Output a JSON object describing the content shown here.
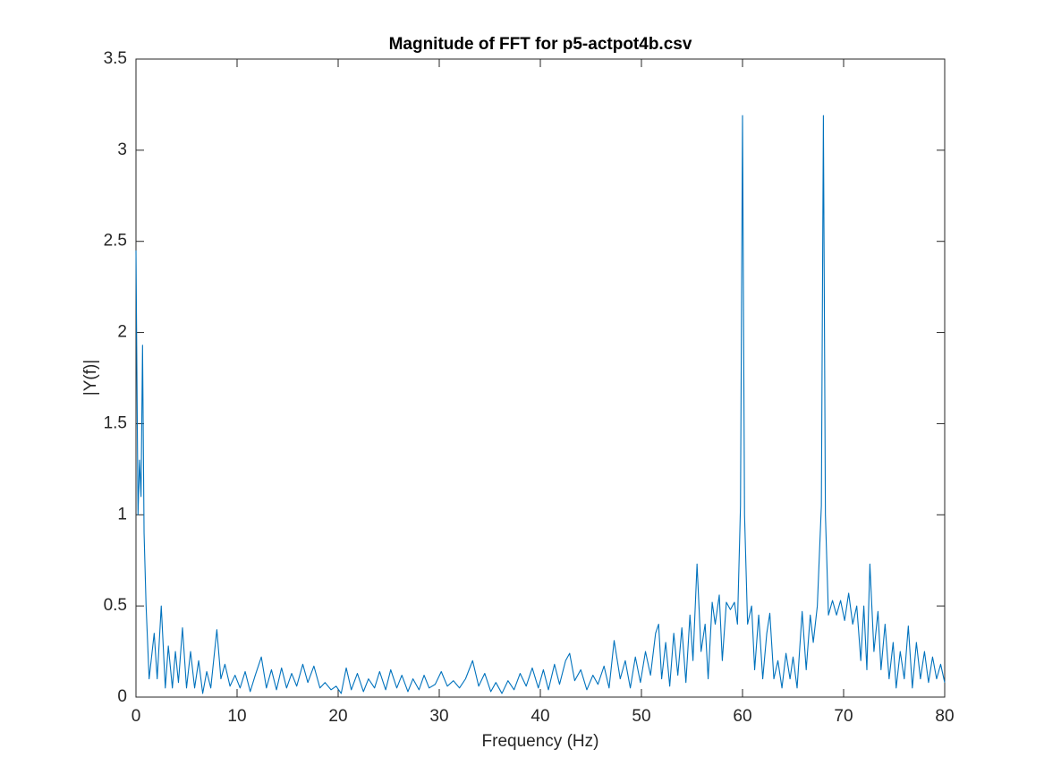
{
  "chart_data": {
    "type": "line",
    "title": "Magnitude of FFT for p5-actpot4b.csv",
    "x_label": "Frequency (Hz)",
    "y_label": "|Y(f)|",
    "color": "#0072bd",
    "grid": false,
    "xlim": [
      0,
      80
    ],
    "xticks": [
      0,
      10,
      20,
      30,
      40,
      50,
      60,
      70,
      80
    ],
    "ylim": [
      0,
      3.5
    ],
    "yticks": [
      0,
      0.5,
      1,
      1.5,
      2,
      2.5,
      3,
      3.5
    ],
    "x": [
      0,
      0.2,
      0.35,
      0.5,
      0.65,
      0.8,
      1.0,
      1.3,
      1.5,
      1.8,
      2.1,
      2.5,
      2.9,
      3.2,
      3.6,
      3.9,
      4.2,
      4.6,
      5.0,
      5.4,
      5.8,
      6.2,
      6.6,
      7.0,
      7.4,
      8.0,
      8.4,
      8.8,
      9.3,
      9.8,
      10.3,
      10.8,
      11.3,
      11.8,
      12.4,
      12.9,
      13.4,
      13.9,
      14.4,
      14.9,
      15.4,
      15.9,
      16.5,
      17.0,
      17.6,
      18.2,
      18.7,
      19.3,
      19.8,
      20.3,
      20.8,
      21.3,
      21.9,
      22.5,
      23.0,
      23.6,
      24.1,
      24.7,
      25.2,
      25.8,
      26.3,
      26.9,
      27.4,
      28.0,
      28.5,
      29.0,
      29.6,
      30.2,
      30.8,
      31.4,
      32.0,
      32.6,
      33.3,
      33.9,
      34.5,
      35.1,
      35.6,
      36.2,
      36.8,
      37.4,
      38.0,
      38.6,
      39.2,
      39.8,
      40.3,
      40.8,
      41.4,
      41.9,
      42.5,
      42.9,
      43.4,
      44.0,
      44.6,
      45.2,
      45.7,
      46.3,
      46.8,
      47.3,
      47.9,
      48.4,
      48.9,
      49.4,
      49.9,
      50.4,
      50.9,
      51.4,
      51.7,
      52.0,
      52.4,
      52.8,
      53.2,
      53.6,
      54.0,
      54.4,
      54.8,
      55.1,
      55.5,
      55.9,
      56.3,
      56.6,
      57.0,
      57.3,
      57.7,
      58.0,
      58.4,
      58.8,
      59.2,
      59.5,
      59.8,
      60.0,
      60.2,
      60.5,
      60.9,
      61.2,
      61.6,
      62.0,
      62.4,
      62.7,
      63.1,
      63.5,
      63.9,
      64.3,
      64.7,
      65.0,
      65.4,
      65.9,
      66.3,
      66.7,
      67.0,
      67.4,
      67.8,
      68.0,
      68.2,
      68.5,
      68.9,
      69.3,
      69.7,
      70.1,
      70.5,
      70.9,
      71.3,
      71.7,
      72.0,
      72.3,
      72.6,
      73.0,
      73.4,
      73.7,
      74.1,
      74.5,
      74.9,
      75.2,
      75.6,
      76.0,
      76.4,
      76.8,
      77.2,
      77.6,
      78.0,
      78.4,
      78.8,
      79.2,
      79.6,
      80.0
    ],
    "values": [
      2.45,
      1.0,
      1.3,
      1.1,
      1.93,
      0.9,
      0.5,
      0.1,
      0.2,
      0.35,
      0.1,
      0.5,
      0.05,
      0.28,
      0.05,
      0.25,
      0.08,
      0.38,
      0.05,
      0.25,
      0.05,
      0.2,
      0.02,
      0.14,
      0.05,
      0.37,
      0.1,
      0.18,
      0.06,
      0.12,
      0.05,
      0.14,
      0.03,
      0.12,
      0.22,
      0.05,
      0.15,
      0.04,
      0.16,
      0.05,
      0.13,
      0.06,
      0.18,
      0.08,
      0.17,
      0.05,
      0.08,
      0.04,
      0.06,
      0.02,
      0.16,
      0.04,
      0.13,
      0.03,
      0.1,
      0.05,
      0.14,
      0.04,
      0.15,
      0.05,
      0.12,
      0.03,
      0.1,
      0.04,
      0.12,
      0.05,
      0.07,
      0.14,
      0.06,
      0.09,
      0.05,
      0.1,
      0.2,
      0.06,
      0.13,
      0.03,
      0.08,
      0.02,
      0.09,
      0.04,
      0.13,
      0.06,
      0.16,
      0.05,
      0.15,
      0.04,
      0.18,
      0.07,
      0.2,
      0.24,
      0.09,
      0.15,
      0.04,
      0.12,
      0.07,
      0.17,
      0.05,
      0.31,
      0.1,
      0.2,
      0.05,
      0.22,
      0.08,
      0.25,
      0.12,
      0.35,
      0.4,
      0.1,
      0.3,
      0.06,
      0.35,
      0.12,
      0.38,
      0.08,
      0.45,
      0.2,
      0.73,
      0.25,
      0.4,
      0.1,
      0.52,
      0.4,
      0.56,
      0.2,
      0.52,
      0.48,
      0.52,
      0.4,
      1.05,
      3.19,
      1.0,
      0.4,
      0.5,
      0.15,
      0.45,
      0.1,
      0.35,
      0.46,
      0.1,
      0.2,
      0.05,
      0.24,
      0.1,
      0.22,
      0.05,
      0.47,
      0.15,
      0.45,
      0.3,
      0.5,
      1.05,
      3.19,
      1.0,
      0.45,
      0.53,
      0.45,
      0.53,
      0.42,
      0.57,
      0.4,
      0.5,
      0.2,
      0.5,
      0.15,
      0.73,
      0.25,
      0.47,
      0.15,
      0.4,
      0.1,
      0.3,
      0.05,
      0.25,
      0.1,
      0.39,
      0.05,
      0.3,
      0.1,
      0.25,
      0.08,
      0.22,
      0.1,
      0.18,
      0.08
    ]
  }
}
